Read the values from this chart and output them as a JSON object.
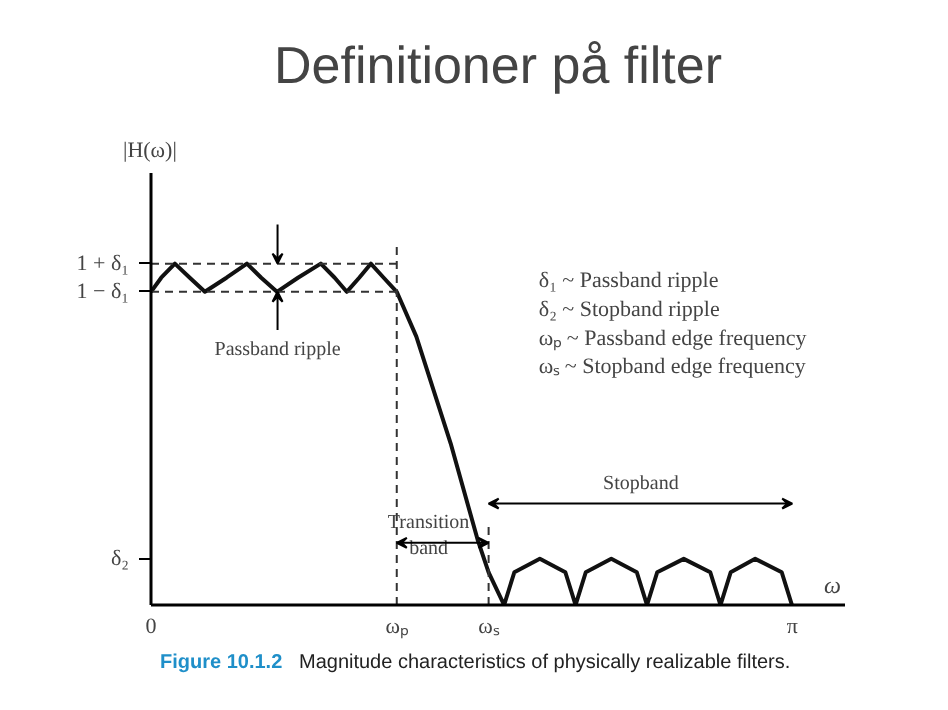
{
  "chart_data": {
    "type": "line",
    "title": "Definitioner på filter",
    "ylabel": "|H(ω)|",
    "xlabel": "ω",
    "x": [
      0,
      0.05,
      0.117,
      0.19,
      0.264,
      0.37,
      0.47,
      0.54,
      0.617,
      0.72,
      0.832,
      0.9,
      0.959,
      1.02,
      1.077,
      1.14,
      1.204,
      1.3,
      1.468,
      1.6,
      1.654,
      1.73,
      1.78,
      1.905,
      2.03,
      2.08,
      2.13,
      2.255,
      2.38,
      2.43,
      2.48,
      2.61,
      2.74,
      2.79,
      2.84,
      2.96,
      3.09,
      3.14
    ],
    "series": [
      {
        "color": "#111111",
        "values": [
          0.957,
          1.0,
          1.043,
          1.0,
          0.957,
          1.0,
          1.043,
          1.0,
          0.957,
          1.0,
          1.043,
          1.0,
          0.957,
          1.0,
          1.043,
          1.0,
          0.957,
          0.82,
          0.494,
          0.2,
          0.1,
          0,
          0.1,
          0.141,
          0.1,
          0,
          0.1,
          0.141,
          0.1,
          0,
          0.1,
          0.141,
          0.1,
          0,
          0.1,
          0.141,
          0.1,
          0
        ]
      }
    ],
    "xlim": [
      0,
      3.4
    ],
    "ylim": [
      0,
      1.32
    ],
    "xticks": [
      0,
      {
        "value": 1.204,
        "label": "ωₚ"
      },
      {
        "value": 1.654,
        "label": "ωₛ"
      },
      {
        "value": 3.1416,
        "label": "π"
      }
    ],
    "yticks": [
      {
        "value": 1.043,
        "label": "1 + δ₁"
      },
      {
        "value": 0.957,
        "label": "1 − δ₁"
      },
      {
        "value": 0.141,
        "label": "δ₂"
      }
    ],
    "ref_lines": [
      {
        "axis": "y",
        "value": 1.043,
        "line_style": "dashed"
      },
      {
        "axis": "y",
        "value": 0.957,
        "line_style": "dashed"
      },
      {
        "axis": "x",
        "value": 1.204,
        "line_style": "dashed"
      },
      {
        "axis": "x",
        "value": 1.654,
        "line_style": "dashed"
      }
    ],
    "annotations": [
      "Passband ripple",
      "Transition\nband",
      "Stopband",
      "δ₁ ~ Passband ripple",
      "δ₂ ~ Stopband ripple",
      "ωₚ ~ Passband edge frequency",
      "ωₛ ~ Stopband edge frequency",
      "Figure 10.1.2",
      "Magnitude characteristics of physically realizable filters."
    ],
    "grid": false,
    "marker": "none",
    "line_style": "solid"
  }
}
